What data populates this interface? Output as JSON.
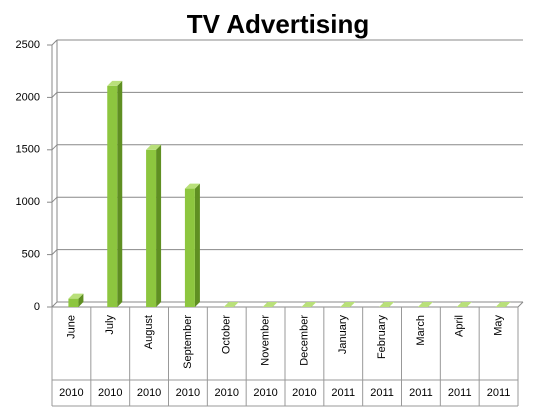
{
  "chart_data": {
    "type": "bar3d",
    "title": "TV Advertising",
    "categories": [
      "June",
      "July",
      "August",
      "September",
      "October",
      "November",
      "December",
      "January",
      "February",
      "March",
      "April",
      "May"
    ],
    "groups": [
      "2010",
      "2010",
      "2010",
      "2010",
      "2010",
      "2010",
      "2010",
      "2011",
      "2011",
      "2011",
      "2011",
      "2011"
    ],
    "values": [
      80,
      2110,
      1500,
      1130,
      0,
      0,
      0,
      0,
      0,
      0,
      0,
      0
    ],
    "color": "#8dc63f",
    "ylim": [
      0,
      2500
    ],
    "yticks": [
      0,
      500,
      1000,
      1500,
      2000,
      2500
    ],
    "grid": true
  }
}
